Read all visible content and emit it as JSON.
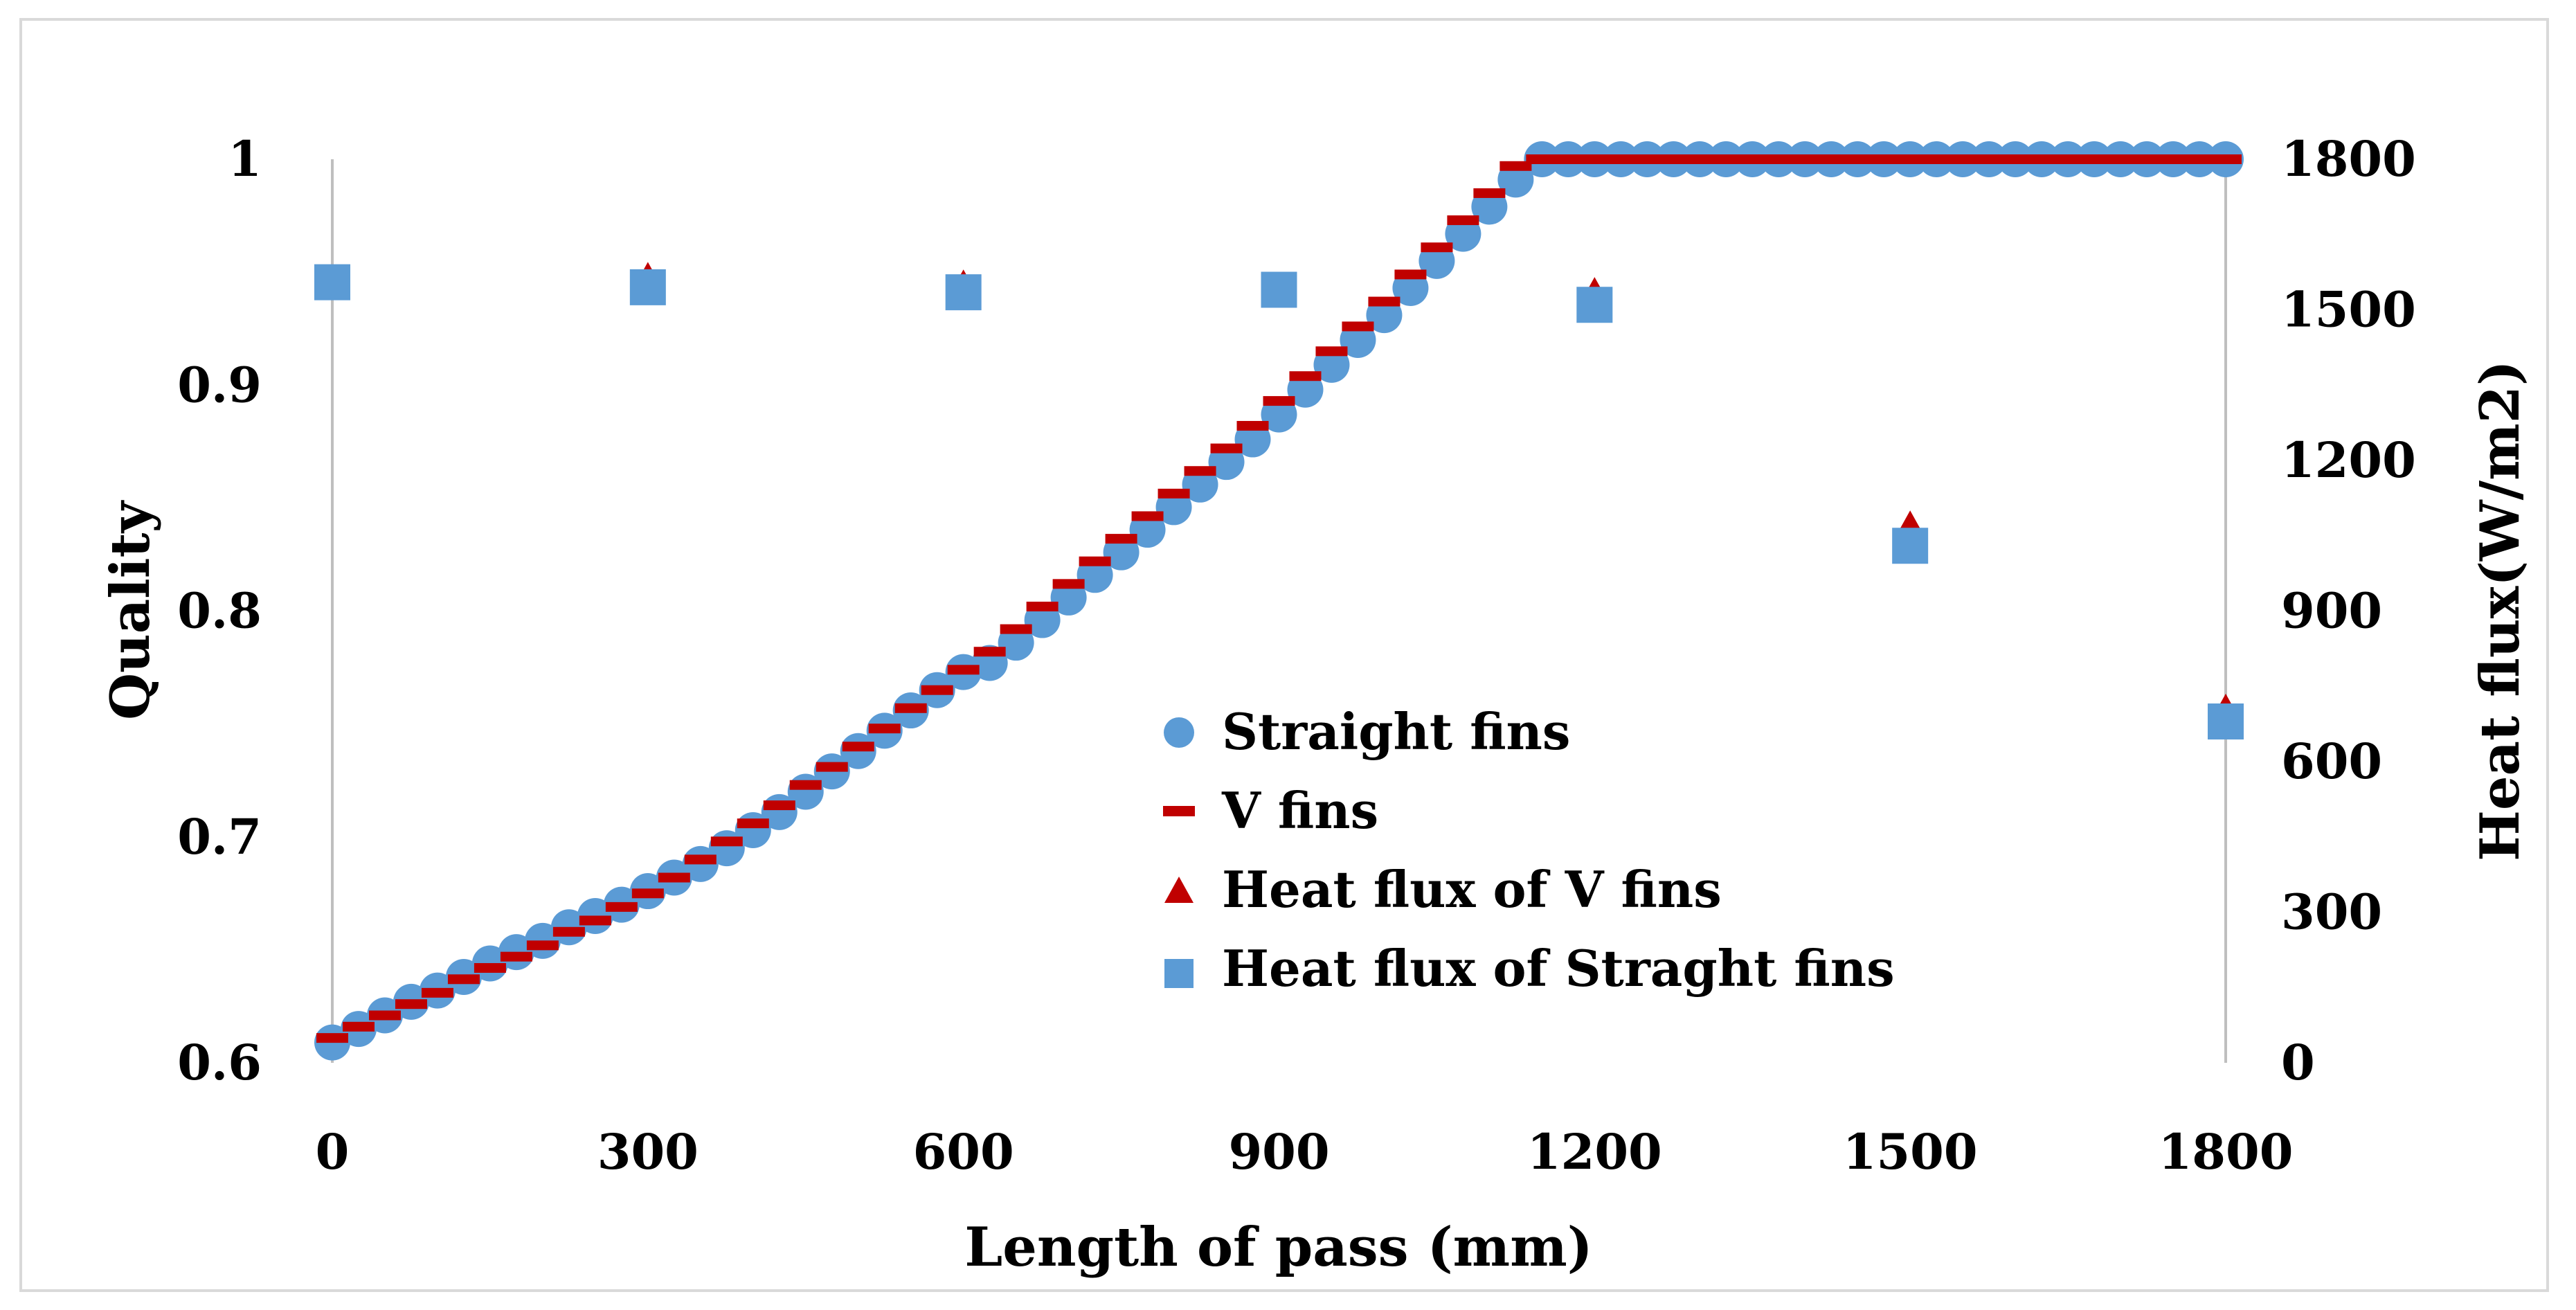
{
  "chart_data": {
    "type": "scatter",
    "xlabel": "Length of pass (mm)",
    "ylabel": "Quality",
    "y2label": "Heat flux(W/m2)",
    "xlim": [
      0,
      1800
    ],
    "ylim": [
      0.6,
      1.0
    ],
    "y2lim": [
      0,
      1800
    ],
    "x_ticks": [
      0,
      300,
      600,
      900,
      1200,
      1500,
      1800
    ],
    "y_ticks": [
      0.6,
      0.7,
      0.8,
      0.9,
      1
    ],
    "y2_ticks": [
      0,
      300,
      600,
      900,
      1200,
      1500,
      1800
    ],
    "x_tick_labels": [
      "0",
      "300",
      "600",
      "900",
      "1200",
      "1500",
      "1800"
    ],
    "y_tick_labels": [
      "0.6",
      "0.7",
      "0.8",
      "0.9",
      "1"
    ],
    "y2_tick_labels": [
      "0",
      "300",
      "600",
      "900",
      "1200",
      "1500",
      "1800"
    ],
    "legend_position": "center-right",
    "series": [
      {
        "name": "Straight fins",
        "kind": "quality-circles",
        "axis": "left",
        "color": "#5B9BD5",
        "x": [
          0,
          25,
          50,
          75,
          100,
          125,
          150,
          175,
          200,
          225,
          250,
          275,
          300,
          325,
          350,
          375,
          400,
          425,
          450,
          475,
          500,
          525,
          550,
          575,
          600,
          625,
          650,
          675,
          700,
          725,
          750,
          775,
          800,
          825,
          850,
          875,
          900,
          925,
          950,
          975,
          1000,
          1025,
          1050,
          1075,
          1100,
          1125,
          1150,
          1175,
          1200,
          1225,
          1250,
          1275,
          1300,
          1325,
          1350,
          1375,
          1400,
          1425,
          1450,
          1475,
          1500,
          1525,
          1550,
          1575,
          1600,
          1625,
          1650,
          1675,
          1700,
          1725,
          1750,
          1775,
          1800
        ],
        "values": [
          0.609,
          0.615,
          0.621,
          0.627,
          0.632,
          0.638,
          0.644,
          0.649,
          0.654,
          0.66,
          0.665,
          0.67,
          0.676,
          0.682,
          0.688,
          0.695,
          0.703,
          0.711,
          0.72,
          0.729,
          0.738,
          0.747,
          0.756,
          0.765,
          0.773,
          0.777,
          0.786,
          0.796,
          0.806,
          0.816,
          0.826,
          0.836,
          0.846,
          0.856,
          0.866,
          0.876,
          0.887,
          0.898,
          0.909,
          0.92,
          0.931,
          0.943,
          0.955,
          0.967,
          0.979,
          0.991,
          1.0,
          1.0,
          1.0,
          1.0,
          1.0,
          1.0,
          1.0,
          1.0,
          1.0,
          1.0,
          1.0,
          1.0,
          1.0,
          1.0,
          1.0,
          1.0,
          1.0,
          1.0,
          1.0,
          1.0,
          1.0,
          1.0,
          1.0,
          1.0,
          1.0,
          1.0,
          1.0
        ]
      },
      {
        "name": "V fins",
        "kind": "quality-dashes",
        "axis": "left",
        "color": "#C00000",
        "x": [
          0,
          25,
          50,
          75,
          100,
          125,
          150,
          175,
          200,
          225,
          250,
          275,
          300,
          325,
          350,
          375,
          400,
          425,
          450,
          475,
          500,
          525,
          550,
          575,
          600,
          625,
          650,
          675,
          700,
          725,
          750,
          775,
          800,
          825,
          850,
          875,
          900,
          925,
          950,
          975,
          1000,
          1025,
          1050,
          1075,
          1100,
          1125,
          1150,
          1175,
          1200,
          1225,
          1250,
          1275,
          1300,
          1325,
          1350,
          1375,
          1400,
          1425,
          1450,
          1475,
          1500,
          1525,
          1550,
          1575,
          1600,
          1625,
          1650,
          1675,
          1700,
          1725,
          1750,
          1775,
          1800
        ],
        "values": [
          0.611,
          0.616,
          0.621,
          0.626,
          0.631,
          0.637,
          0.642,
          0.647,
          0.652,
          0.658,
          0.663,
          0.669,
          0.675,
          0.682,
          0.69,
          0.698,
          0.706,
          0.714,
          0.723,
          0.731,
          0.74,
          0.748,
          0.757,
          0.765,
          0.774,
          0.782,
          0.792,
          0.802,
          0.812,
          0.822,
          0.832,
          0.842,
          0.852,
          0.862,
          0.872,
          0.882,
          0.893,
          0.904,
          0.915,
          0.926,
          0.937,
          0.949,
          0.961,
          0.973,
          0.985,
          0.997,
          1.0,
          1.0,
          1.0,
          1.0,
          1.0,
          1.0,
          1.0,
          1.0,
          1.0,
          1.0,
          1.0,
          1.0,
          1.0,
          1.0,
          1.0,
          1.0,
          1.0,
          1.0,
          1.0,
          1.0,
          1.0,
          1.0,
          1.0,
          1.0,
          1.0,
          1.0,
          1.0
        ]
      },
      {
        "name": "Heat flux of V fins",
        "kind": "heatflux-triangles",
        "axis": "right",
        "color": "#C00000",
        "x": [
          0,
          300,
          600,
          900,
          1200,
          1500,
          1800
        ],
        "values": [
          1545,
          1565,
          1550,
          1545,
          1535,
          1070,
          705
        ]
      },
      {
        "name": "Heat flux of Straght fins",
        "kind": "heatflux-squares",
        "axis": "right",
        "color": "#5B9BD5",
        "x": [
          0,
          300,
          600,
          900,
          1200,
          1500,
          1800
        ],
        "values": [
          1555,
          1545,
          1535,
          1540,
          1510,
          1030,
          680
        ]
      }
    ]
  }
}
